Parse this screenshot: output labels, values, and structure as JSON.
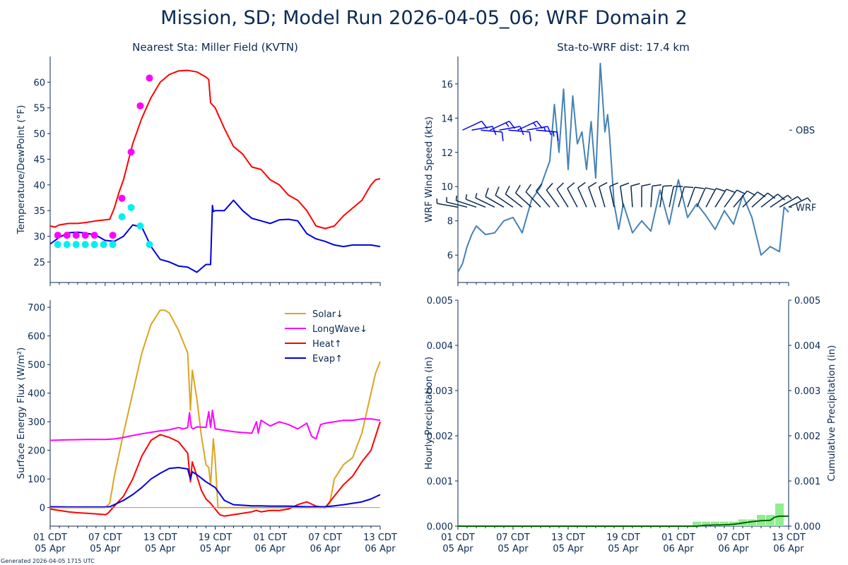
{
  "title": "Mission, SD; Model Run 2026-04-05_06; WRF Domain 2",
  "footer": "Generated 2026-04-05 1715 UTC",
  "colors": {
    "text": "#0a2a52",
    "temp": "#ff0000",
    "dewpoint": "#0000dd",
    "obs_temp": "#ff00ff",
    "obs_dew": "#00f0f0",
    "wind_speed": "#4682b4",
    "obs_barb": "#0000ee",
    "wrf_barb": "#0a2a52",
    "solar": "#daa520",
    "longwave": "#ff00ff",
    "heat": "#ff0000",
    "evap": "#0000dd",
    "cum_precip": "#006400",
    "hourly_precip": "#90ee90",
    "zero_line": "#999999"
  },
  "x_ticks": [
    {
      "label1": "01 CDT",
      "label2": "05 Apr",
      "h": 0
    },
    {
      "label1": "07 CDT",
      "label2": "05 Apr",
      "h": 6
    },
    {
      "label1": "13 CDT",
      "label2": "05 Apr",
      "h": 12
    },
    {
      "label1": "19 CDT",
      "label2": "05 Apr",
      "h": 18
    },
    {
      "label1": "01 CDT",
      "label2": "06 Apr",
      "h": 24
    },
    {
      "label1": "07 CDT",
      "label2": "06 Apr",
      "h": 30
    },
    {
      "label1": "13 CDT",
      "label2": "06 Apr",
      "h": 36
    }
  ],
  "chart_data": [
    {
      "id": "temp",
      "type": "line",
      "title": "Nearest Sta: Miller Field (KVTN)",
      "ylabel": "Temperature/DewPoint (°F)",
      "xlabel": "",
      "xlim": [
        0,
        36
      ],
      "ylim": [
        21,
        65
      ],
      "yticks": [
        25,
        30,
        35,
        40,
        45,
        50,
        55,
        60
      ],
      "series": [
        {
          "name": "WRF Temperature",
          "color_key": "temp",
          "x": [
            0,
            0.5,
            1,
            2,
            3,
            4,
            5,
            6,
            6.5,
            7,
            7.5,
            8,
            9,
            10,
            11,
            12,
            13,
            14,
            15,
            16,
            17,
            17.3,
            17.5,
            18,
            19,
            20,
            21,
            22,
            23,
            24,
            25,
            26,
            27,
            28,
            29,
            30,
            31,
            32,
            33,
            34,
            35,
            35.5,
            36
          ],
          "y": [
            32,
            31.8,
            32.2,
            32.5,
            32.5,
            32.7,
            33,
            33.2,
            33.3,
            35.5,
            38.5,
            41,
            48,
            53,
            57,
            60,
            61.5,
            62.2,
            62.3,
            62,
            61,
            60.5,
            56,
            55,
            51,
            47.5,
            46,
            43.5,
            43,
            41,
            40,
            38,
            37,
            35,
            32,
            31.5,
            32,
            34,
            35.5,
            37,
            40,
            41,
            41.2
          ]
        },
        {
          "name": "WRF DewPoint",
          "color_key": "dewpoint",
          "x": [
            0,
            1,
            2,
            3,
            4,
            5,
            6,
            7,
            8,
            9,
            9.5,
            10,
            11,
            12,
            13,
            14,
            15,
            16,
            17,
            17.5,
            17.7,
            17.8,
            18,
            19,
            20,
            21,
            22,
            23,
            24,
            25,
            26,
            27,
            28,
            29,
            30,
            31,
            32,
            33,
            34,
            35,
            36
          ],
          "y": [
            28.5,
            29.8,
            30.7,
            30.8,
            30.6,
            30.2,
            29.2,
            29.0,
            30.0,
            32.2,
            32,
            31.8,
            28,
            25.5,
            25,
            24.2,
            24,
            23,
            24.5,
            24.5,
            36,
            34.8,
            35,
            35,
            37,
            35,
            33.5,
            33,
            32.5,
            33.2,
            33.3,
            33,
            30.5,
            29.5,
            29,
            28.3,
            28,
            28.3,
            28.3,
            28.3,
            28
          ]
        },
        {
          "name": "Obs Temperature",
          "color_key": "obs_temp",
          "type": "scatter",
          "x": [
            0.83,
            1.83,
            2.83,
            3.83,
            4.83,
            6.83,
            7.83,
            8.83,
            9.83,
            10.83
          ],
          "y": [
            30.2,
            30.2,
            30.2,
            30.2,
            30.2,
            30.2,
            37.4,
            46.4,
            55.4,
            60.8
          ]
        },
        {
          "name": "Obs DewPoint",
          "color_key": "obs_dew",
          "type": "scatter",
          "x": [
            0.83,
            1.83,
            2.83,
            3.83,
            4.83,
            5.83,
            6.83,
            7.83,
            8.83,
            9.83,
            10.83
          ],
          "y": [
            28.4,
            28.4,
            28.4,
            28.4,
            28.4,
            28.4,
            28.4,
            33.8,
            35.6,
            32.0,
            28.4
          ]
        }
      ]
    },
    {
      "id": "wind",
      "type": "line",
      "title": "Sta-to-WRF dist: 17.4 km",
      "ylabel": "WRF Wind Speed (kts)",
      "xlabel": "",
      "xlim": [
        0,
        36
      ],
      "ylim": [
        4.4,
        17.6
      ],
      "yticks": [
        6,
        8,
        10,
        12,
        14,
        16
      ],
      "right_labels": [
        {
          "label": "OBS",
          "y": 13.3
        },
        {
          "label": "WRF",
          "y": 8.8
        }
      ],
      "series": [
        {
          "name": "WRF Wind Speed",
          "color_key": "wind_speed",
          "x": [
            0,
            0.5,
            1,
            1.5,
            2,
            3,
            4,
            5,
            6,
            7,
            8,
            9,
            10,
            10.5,
            11,
            11.5,
            12,
            12.5,
            13,
            13.5,
            14,
            14.5,
            15,
            15.5,
            16,
            16.3,
            16.5,
            17,
            17.5,
            18,
            19,
            20,
            21,
            22,
            23,
            24,
            25,
            26,
            27,
            28,
            29,
            30,
            31,
            32,
            33,
            34,
            35,
            35.5,
            36
          ],
          "y": [
            5,
            5.5,
            6.5,
            7.2,
            7.7,
            7.2,
            7.3,
            8.0,
            8.2,
            7.3,
            9.2,
            10.0,
            11.5,
            14.8,
            12.0,
            15.7,
            11.0,
            15.3,
            12.5,
            13.2,
            11.0,
            13.8,
            10.5,
            17.2,
            13.2,
            14.2,
            13,
            9.0,
            7.5,
            9.0,
            7.3,
            8.0,
            7.4,
            9.8,
            7.8,
            10.4,
            8.2,
            9.0,
            8.3,
            7.5,
            8.6,
            7.8,
            9.5,
            8.2,
            6.0,
            6.5,
            6.2,
            8.8,
            8.5
          ]
        },
        {
          "name": "OBS wind barbs",
          "color_key": "obs_barb",
          "type": "barbs",
          "x": [
            0.5,
            1.5,
            2.5,
            3.5,
            4.5,
            5.5,
            6.5,
            7.5,
            8.5
          ],
          "speed_kts": [
            10,
            10,
            10,
            15,
            10,
            10,
            15,
            15,
            15
          ]
        },
        {
          "name": "WRF wind barbs",
          "color_key": "wrf_barb",
          "type": "barbs",
          "x": [
            0,
            1,
            2,
            3,
            4,
            5,
            6,
            7,
            8,
            9,
            10,
            11,
            12,
            13,
            14,
            15,
            16,
            17,
            18,
            19,
            20,
            21,
            22,
            23,
            24,
            25,
            26,
            27,
            28,
            29,
            30,
            31,
            32,
            33,
            34,
            35,
            36
          ],
          "speed_kts": [
            5,
            5,
            5,
            5,
            5,
            10,
            10,
            10,
            10,
            10,
            10,
            10,
            10,
            10,
            10,
            10,
            10,
            10,
            10,
            10,
            10,
            10,
            10,
            10,
            10,
            10,
            10,
            10,
            10,
            10,
            10,
            10,
            10,
            10,
            5,
            5,
            5
          ]
        }
      ]
    },
    {
      "id": "flux",
      "type": "line",
      "title": "",
      "ylabel": "Surface Energy Flux (W/m²)",
      "xlabel": "",
      "xlim": [
        0,
        36
      ],
      "ylim": [
        -65,
        725
      ],
      "yticks": [
        0,
        100,
        200,
        300,
        400,
        500,
        600,
        700
      ],
      "legend": "top-right",
      "series": [
        {
          "name": "Solar↓",
          "color_key": "solar",
          "x": [
            0,
            6,
            6.5,
            7,
            8,
            9,
            10,
            11,
            12,
            12.5,
            13,
            14,
            15,
            15.3,
            15.5,
            15.7,
            16,
            16.5,
            17,
            17.3,
            17.5,
            17.8,
            18,
            18.3,
            18.6,
            19,
            20,
            21,
            22,
            23,
            24,
            25,
            26,
            27,
            28,
            29,
            30,
            30.5,
            31,
            32,
            33,
            34,
            35,
            35.5,
            36
          ],
          "y": [
            0,
            0,
            15,
            110,
            260,
            400,
            540,
            640,
            690,
            690,
            680,
            620,
            540,
            340,
            480,
            440,
            380,
            250,
            150,
            140,
            80,
            240,
            170,
            0,
            0,
            0,
            0,
            0,
            0,
            0,
            0,
            0,
            0,
            0,
            0,
            0,
            0,
            15,
            100,
            150,
            175,
            260,
            400,
            470,
            510
          ]
        },
        {
          "name": "LongWave↓",
          "color_key": "longwave",
          "x": [
            0,
            2,
            4,
            6,
            7,
            8,
            9,
            10,
            11,
            12,
            13,
            14,
            14.5,
            15,
            15.2,
            15.4,
            15.6,
            16,
            17,
            17.3,
            17.5,
            17.7,
            18,
            19,
            20,
            21,
            22,
            22.5,
            22.7,
            23,
            24,
            25,
            26,
            27,
            28,
            28.5,
            29,
            29.5,
            30,
            31,
            32,
            33,
            34,
            35,
            36
          ],
          "y": [
            235,
            237,
            238,
            238,
            240,
            245,
            252,
            258,
            263,
            268,
            272,
            280,
            275,
            280,
            332,
            280,
            275,
            282,
            280,
            335,
            280,
            340,
            275,
            270,
            265,
            262,
            260,
            300,
            260,
            305,
            285,
            300,
            290,
            275,
            295,
            250,
            240,
            290,
            295,
            300,
            305,
            305,
            310,
            310,
            305
          ]
        },
        {
          "name": "Heat↑",
          "color_key": "heat",
          "x": [
            0,
            1,
            2,
            3,
            4,
            5,
            6,
            6.3,
            7,
            8,
            9,
            10,
            11,
            12,
            13,
            14,
            15,
            15.3,
            15.5,
            16,
            16.5,
            17,
            17.5,
            18,
            18.5,
            19,
            20,
            21,
            22,
            22.5,
            23,
            24,
            25,
            26,
            27,
            28,
            29,
            30,
            31,
            32,
            33,
            34,
            35,
            35.5,
            36
          ],
          "y": [
            -5,
            -10,
            -15,
            -18,
            -20,
            -22,
            -25,
            -20,
            5,
            40,
            100,
            180,
            235,
            255,
            245,
            230,
            190,
            90,
            160,
            110,
            60,
            30,
            15,
            -5,
            -25,
            -30,
            -25,
            -20,
            -15,
            -10,
            -15,
            -10,
            -10,
            -5,
            10,
            20,
            5,
            0,
            40,
            80,
            110,
            160,
            200,
            250,
            300
          ]
        },
        {
          "name": "Evap↑",
          "color_key": "evap",
          "x": [
            0,
            2,
            4,
            6,
            6.5,
            7,
            8,
            9,
            10,
            11,
            12,
            13,
            14,
            15,
            15.3,
            15.5,
            16,
            17,
            18,
            19,
            20,
            21,
            22,
            23,
            24,
            25,
            26,
            27,
            28,
            29,
            30,
            31,
            32,
            33,
            34,
            35,
            36
          ],
          "y": [
            3,
            2,
            2,
            2,
            3,
            10,
            25,
            45,
            70,
            100,
            120,
            137,
            140,
            135,
            100,
            125,
            115,
            90,
            70,
            25,
            10,
            8,
            6,
            6,
            5,
            5,
            5,
            4,
            3,
            3,
            3,
            6,
            10,
            15,
            20,
            30,
            45
          ]
        },
        {
          "name": "Zero line",
          "color_key": "zero_line",
          "type": "hline",
          "y": 0
        }
      ]
    },
    {
      "id": "precip",
      "type": "bar",
      "title": "",
      "ylabel": "Hourly Precipitation (in)",
      "ylabel_right": "Cumulative Precipitation (in)",
      "xlabel": "",
      "xlim": [
        0,
        36
      ],
      "ylim": [
        0,
        0.005
      ],
      "yticks": [
        0.0,
        0.001,
        0.002,
        0.003,
        0.004,
        0.005
      ],
      "ytick_labels": [
        "0.000",
        "0.001",
        "0.002",
        "0.003",
        "0.004",
        "0.005"
      ],
      "series": [
        {
          "name": "Hourly Precipitation",
          "color_key": "hourly_precip",
          "type": "bar",
          "x": [
            26,
            27,
            28,
            29,
            30,
            31,
            32,
            33,
            34,
            35
          ],
          "values": [
            2e-05,
            2e-05,
            2e-05,
            2e-05,
            2e-05,
            3e-05,
            3e-05,
            5e-05,
            5e-05,
            0.0001
          ]
        },
        {
          "name": "Cumulative Precipitation",
          "color_key": "cum_precip",
          "type": "line",
          "x": [
            0,
            26,
            27,
            29,
            30,
            31,
            32,
            33,
            34,
            34.5,
            35,
            36
          ],
          "y": [
            0,
            0,
            2e-05,
            3e-05,
            4e-05,
            7e-05,
            0.0001,
            0.00012,
            0.00013,
            0.0002,
            0.00022,
            0.00022
          ]
        }
      ]
    }
  ]
}
